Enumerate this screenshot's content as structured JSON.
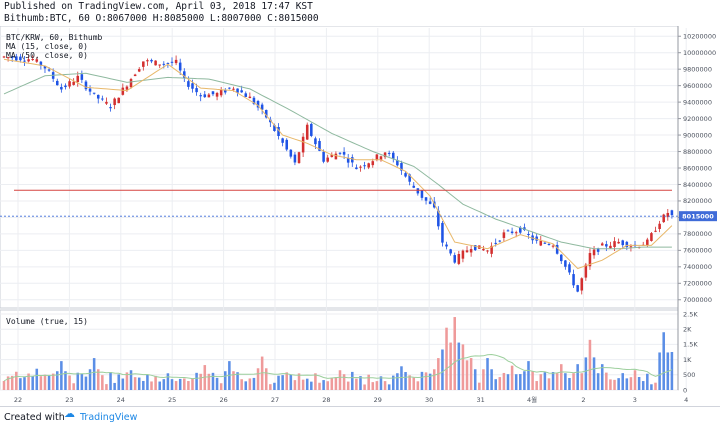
{
  "header": {
    "line1": "Published on TradingView.com, April 03, 2018 17:47 KST",
    "line2": "Bithumb:BTC, 60 O:8067000 H:8085000 L:8007000 C:8015000"
  },
  "footer": {
    "created_with": "Created with",
    "brand": "TradingView"
  },
  "colors": {
    "up": "#d32f2f",
    "down": "#1e53e5",
    "ma_fast": "#e8b86a",
    "ma_slow": "#8fb99f",
    "hline": "#d64541",
    "last_line": "#3f6bd8",
    "vol_up": "#ef9a9a",
    "vol_down": "#5b8ee6",
    "vol_ma": "#9ccf9c"
  },
  "chart_data": [
    {
      "type": "candlestick",
      "symbol": "BTC/KRW, 60, Bithumb",
      "legend": [
        "MA (15, close, 0)",
        "MA (50, close, 0)"
      ],
      "ylim": [
        6900000,
        10300000
      ],
      "y_ticks": [
        "10200000",
        "10000000",
        "9800000",
        "9600000",
        "9400000",
        "9200000",
        "9000000",
        "8800000",
        "8600000",
        "8400000",
        "8200000",
        "8000000",
        "7800000",
        "7600000",
        "7400000",
        "7200000",
        "7000000"
      ],
      "x_ticks": [
        "22",
        "23",
        "24",
        "25",
        "26",
        "27",
        "28",
        "29",
        "30",
        "31",
        "4월",
        "2",
        "3",
        "4"
      ],
      "last_price_label": "8015000",
      "last_price": 8015000,
      "horizontal_line": 8330000,
      "path_points": [
        [
          0,
          9950000
        ],
        [
          7,
          9920000
        ],
        [
          10,
          9820000
        ],
        [
          14,
          9560000
        ],
        [
          18,
          9700000
        ],
        [
          22,
          9480000
        ],
        [
          26,
          9350000
        ],
        [
          30,
          9620000
        ],
        [
          34,
          9900000
        ],
        [
          38,
          9870000
        ],
        [
          42,
          9880000
        ],
        [
          44,
          9660000
        ],
        [
          48,
          9480000
        ],
        [
          52,
          9500000
        ],
        [
          56,
          9580000
        ],
        [
          60,
          9450000
        ],
        [
          64,
          9220000
        ],
        [
          68,
          8900000
        ],
        [
          71,
          8650000
        ],
        [
          74,
          9100000
        ],
        [
          78,
          8700000
        ],
        [
          82,
          8800000
        ],
        [
          86,
          8600000
        ],
        [
          90,
          8700000
        ],
        [
          93,
          8800000
        ],
        [
          96,
          8650000
        ],
        [
          99,
          8420000
        ],
        [
          102,
          8250000
        ],
        [
          105,
          8100000
        ],
        [
          107,
          7700000
        ],
        [
          110,
          7480000
        ],
        [
          114,
          7650000
        ],
        [
          118,
          7600000
        ],
        [
          122,
          7800000
        ],
        [
          126,
          7850000
        ],
        [
          130,
          7700000
        ],
        [
          134,
          7680000
        ],
        [
          137,
          7400000
        ],
        [
          140,
          7100000
        ],
        [
          143,
          7550000
        ],
        [
          146,
          7650000
        ],
        [
          150,
          7700000
        ],
        [
          154,
          7650000
        ],
        [
          157,
          7700000
        ],
        [
          160,
          7950000
        ],
        [
          162,
          8060000
        ],
        [
          163,
          8015000
        ]
      ],
      "ma15": [
        [
          0,
          9920000
        ],
        [
          10,
          9840000
        ],
        [
          20,
          9580000
        ],
        [
          30,
          9540000
        ],
        [
          40,
          9860000
        ],
        [
          48,
          9570000
        ],
        [
          56,
          9540000
        ],
        [
          62,
          9360000
        ],
        [
          68,
          9000000
        ],
        [
          74,
          8900000
        ],
        [
          80,
          8760000
        ],
        [
          86,
          8700000
        ],
        [
          92,
          8700000
        ],
        [
          98,
          8560000
        ],
        [
          104,
          8260000
        ],
        [
          110,
          7700000
        ],
        [
          118,
          7620000
        ],
        [
          126,
          7790000
        ],
        [
          134,
          7680000
        ],
        [
          140,
          7380000
        ],
        [
          146,
          7480000
        ],
        [
          152,
          7660000
        ],
        [
          158,
          7660000
        ],
        [
          163,
          7900000
        ]
      ],
      "ma50": [
        [
          0,
          9500000
        ],
        [
          10,
          9720000
        ],
        [
          20,
          9750000
        ],
        [
          30,
          9640000
        ],
        [
          40,
          9700000
        ],
        [
          50,
          9680000
        ],
        [
          60,
          9560000
        ],
        [
          70,
          9300000
        ],
        [
          80,
          9020000
        ],
        [
          90,
          8800000
        ],
        [
          100,
          8620000
        ],
        [
          106,
          8400000
        ],
        [
          112,
          8160000
        ],
        [
          120,
          7980000
        ],
        [
          128,
          7840000
        ],
        [
          136,
          7700000
        ],
        [
          144,
          7620000
        ],
        [
          150,
          7620000
        ],
        [
          156,
          7640000
        ],
        [
          163,
          7640000
        ]
      ],
      "volume_panel": {
        "title": "Volume (true, 15)",
        "y_ticks": [
          "2.5K",
          "2K",
          "1.5K",
          "1K",
          "500",
          "0"
        ],
        "ylim": [
          0,
          2500
        ],
        "spikes": [
          [
            3,
            600
          ],
          [
            8,
            700
          ],
          [
            14,
            950
          ],
          [
            22,
            1050
          ],
          [
            31,
            650
          ],
          [
            40,
            550
          ],
          [
            49,
            820
          ],
          [
            55,
            950
          ],
          [
            63,
            1100
          ],
          [
            70,
            500
          ],
          [
            82,
            650
          ],
          [
            92,
            450
          ],
          [
            97,
            780
          ],
          [
            103,
            500
          ],
          [
            106,
            1050
          ],
          [
            108,
            2050
          ],
          [
            110,
            2400
          ],
          [
            112,
            1500
          ],
          [
            114,
            1050
          ],
          [
            118,
            1050
          ],
          [
            124,
            800
          ],
          [
            128,
            950
          ],
          [
            136,
            850
          ],
          [
            140,
            850
          ],
          [
            143,
            1650
          ],
          [
            146,
            850
          ],
          [
            154,
            650
          ],
          [
            161,
            1900
          ],
          [
            163,
            1250
          ]
        ]
      }
    }
  ]
}
